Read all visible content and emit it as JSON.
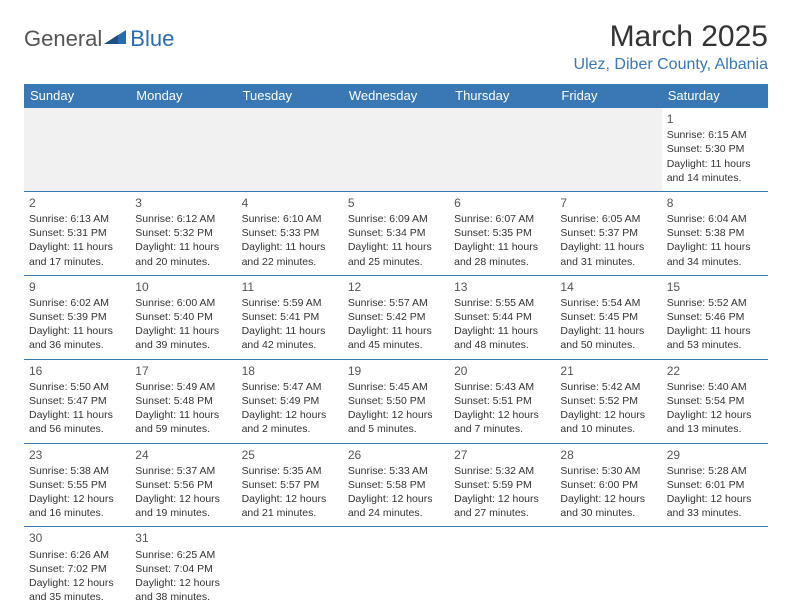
{
  "header": {
    "logo_text_a": "General",
    "logo_text_b": "Blue",
    "month_title": "March 2025",
    "location": "Ulez, Diber County, Albania"
  },
  "colors": {
    "header_bg": "#3a78b5",
    "header_text": "#ffffff",
    "location_color": "#3a78b5",
    "rule_color": "#3a78b5",
    "shade": "#f1f1f1"
  },
  "days_of_week": [
    "Sunday",
    "Monday",
    "Tuesday",
    "Wednesday",
    "Thursday",
    "Friday",
    "Saturday"
  ],
  "weeks": [
    [
      {
        "n": "",
        "sr": "",
        "ss": "",
        "dl": ""
      },
      {
        "n": "",
        "sr": "",
        "ss": "",
        "dl": ""
      },
      {
        "n": "",
        "sr": "",
        "ss": "",
        "dl": ""
      },
      {
        "n": "",
        "sr": "",
        "ss": "",
        "dl": ""
      },
      {
        "n": "",
        "sr": "",
        "ss": "",
        "dl": ""
      },
      {
        "n": "",
        "sr": "",
        "ss": "",
        "dl": ""
      },
      {
        "n": "1",
        "sr": "Sunrise: 6:15 AM",
        "ss": "Sunset: 5:30 PM",
        "dl": "Daylight: 11 hours and 14 minutes."
      }
    ],
    [
      {
        "n": "2",
        "sr": "Sunrise: 6:13 AM",
        "ss": "Sunset: 5:31 PM",
        "dl": "Daylight: 11 hours and 17 minutes."
      },
      {
        "n": "3",
        "sr": "Sunrise: 6:12 AM",
        "ss": "Sunset: 5:32 PM",
        "dl": "Daylight: 11 hours and 20 minutes."
      },
      {
        "n": "4",
        "sr": "Sunrise: 6:10 AM",
        "ss": "Sunset: 5:33 PM",
        "dl": "Daylight: 11 hours and 22 minutes."
      },
      {
        "n": "5",
        "sr": "Sunrise: 6:09 AM",
        "ss": "Sunset: 5:34 PM",
        "dl": "Daylight: 11 hours and 25 minutes."
      },
      {
        "n": "6",
        "sr": "Sunrise: 6:07 AM",
        "ss": "Sunset: 5:35 PM",
        "dl": "Daylight: 11 hours and 28 minutes."
      },
      {
        "n": "7",
        "sr": "Sunrise: 6:05 AM",
        "ss": "Sunset: 5:37 PM",
        "dl": "Daylight: 11 hours and 31 minutes."
      },
      {
        "n": "8",
        "sr": "Sunrise: 6:04 AM",
        "ss": "Sunset: 5:38 PM",
        "dl": "Daylight: 11 hours and 34 minutes."
      }
    ],
    [
      {
        "n": "9",
        "sr": "Sunrise: 6:02 AM",
        "ss": "Sunset: 5:39 PM",
        "dl": "Daylight: 11 hours and 36 minutes."
      },
      {
        "n": "10",
        "sr": "Sunrise: 6:00 AM",
        "ss": "Sunset: 5:40 PM",
        "dl": "Daylight: 11 hours and 39 minutes."
      },
      {
        "n": "11",
        "sr": "Sunrise: 5:59 AM",
        "ss": "Sunset: 5:41 PM",
        "dl": "Daylight: 11 hours and 42 minutes."
      },
      {
        "n": "12",
        "sr": "Sunrise: 5:57 AM",
        "ss": "Sunset: 5:42 PM",
        "dl": "Daylight: 11 hours and 45 minutes."
      },
      {
        "n": "13",
        "sr": "Sunrise: 5:55 AM",
        "ss": "Sunset: 5:44 PM",
        "dl": "Daylight: 11 hours and 48 minutes."
      },
      {
        "n": "14",
        "sr": "Sunrise: 5:54 AM",
        "ss": "Sunset: 5:45 PM",
        "dl": "Daylight: 11 hours and 50 minutes."
      },
      {
        "n": "15",
        "sr": "Sunrise: 5:52 AM",
        "ss": "Sunset: 5:46 PM",
        "dl": "Daylight: 11 hours and 53 minutes."
      }
    ],
    [
      {
        "n": "16",
        "sr": "Sunrise: 5:50 AM",
        "ss": "Sunset: 5:47 PM",
        "dl": "Daylight: 11 hours and 56 minutes."
      },
      {
        "n": "17",
        "sr": "Sunrise: 5:49 AM",
        "ss": "Sunset: 5:48 PM",
        "dl": "Daylight: 11 hours and 59 minutes."
      },
      {
        "n": "18",
        "sr": "Sunrise: 5:47 AM",
        "ss": "Sunset: 5:49 PM",
        "dl": "Daylight: 12 hours and 2 minutes."
      },
      {
        "n": "19",
        "sr": "Sunrise: 5:45 AM",
        "ss": "Sunset: 5:50 PM",
        "dl": "Daylight: 12 hours and 5 minutes."
      },
      {
        "n": "20",
        "sr": "Sunrise: 5:43 AM",
        "ss": "Sunset: 5:51 PM",
        "dl": "Daylight: 12 hours and 7 minutes."
      },
      {
        "n": "21",
        "sr": "Sunrise: 5:42 AM",
        "ss": "Sunset: 5:52 PM",
        "dl": "Daylight: 12 hours and 10 minutes."
      },
      {
        "n": "22",
        "sr": "Sunrise: 5:40 AM",
        "ss": "Sunset: 5:54 PM",
        "dl": "Daylight: 12 hours and 13 minutes."
      }
    ],
    [
      {
        "n": "23",
        "sr": "Sunrise: 5:38 AM",
        "ss": "Sunset: 5:55 PM",
        "dl": "Daylight: 12 hours and 16 minutes."
      },
      {
        "n": "24",
        "sr": "Sunrise: 5:37 AM",
        "ss": "Sunset: 5:56 PM",
        "dl": "Daylight: 12 hours and 19 minutes."
      },
      {
        "n": "25",
        "sr": "Sunrise: 5:35 AM",
        "ss": "Sunset: 5:57 PM",
        "dl": "Daylight: 12 hours and 21 minutes."
      },
      {
        "n": "26",
        "sr": "Sunrise: 5:33 AM",
        "ss": "Sunset: 5:58 PM",
        "dl": "Daylight: 12 hours and 24 minutes."
      },
      {
        "n": "27",
        "sr": "Sunrise: 5:32 AM",
        "ss": "Sunset: 5:59 PM",
        "dl": "Daylight: 12 hours and 27 minutes."
      },
      {
        "n": "28",
        "sr": "Sunrise: 5:30 AM",
        "ss": "Sunset: 6:00 PM",
        "dl": "Daylight: 12 hours and 30 minutes."
      },
      {
        "n": "29",
        "sr": "Sunrise: 5:28 AM",
        "ss": "Sunset: 6:01 PM",
        "dl": "Daylight: 12 hours and 33 minutes."
      }
    ],
    [
      {
        "n": "30",
        "sr": "Sunrise: 6:26 AM",
        "ss": "Sunset: 7:02 PM",
        "dl": "Daylight: 12 hours and 35 minutes."
      },
      {
        "n": "31",
        "sr": "Sunrise: 6:25 AM",
        "ss": "Sunset: 7:04 PM",
        "dl": "Daylight: 12 hours and 38 minutes."
      },
      {
        "n": "",
        "sr": "",
        "ss": "",
        "dl": ""
      },
      {
        "n": "",
        "sr": "",
        "ss": "",
        "dl": ""
      },
      {
        "n": "",
        "sr": "",
        "ss": "",
        "dl": ""
      },
      {
        "n": "",
        "sr": "",
        "ss": "",
        "dl": ""
      },
      {
        "n": "",
        "sr": "",
        "ss": "",
        "dl": ""
      }
    ]
  ]
}
